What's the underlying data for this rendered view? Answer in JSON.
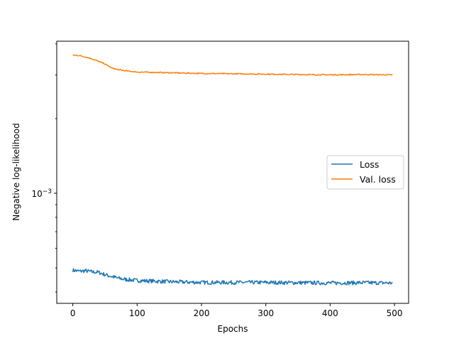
{
  "chart_data": {
    "type": "line",
    "xlabel": "Epochs",
    "ylabel": "Negative log-likelihood",
    "x_ticks": [
      0,
      100,
      200,
      300,
      400,
      500
    ],
    "xlim": [
      -25,
      522
    ],
    "y_scale": "log",
    "y_tick_label": {
      "base": "10",
      "exponent": "−3"
    },
    "y_major_tick": 0.001,
    "ylim": [
      0.00036,
      0.0041
    ],
    "grid": false,
    "legend": {
      "placement": "center-right"
    },
    "series": [
      {
        "name": "Loss",
        "color": "#1f77b4",
        "x": [
          0,
          10,
          20,
          30,
          40,
          50,
          60,
          70,
          80,
          100,
          150,
          200,
          250,
          300,
          350,
          400,
          450,
          497
        ],
        "values": [
          0.00049,
          0.000485,
          0.000487,
          0.000482,
          0.00048,
          0.00047,
          0.000462,
          0.000455,
          0.00045,
          0.000445,
          0.00044,
          0.000437,
          0.000437,
          0.000437,
          0.000436,
          0.000435,
          0.000436,
          0.000435
        ]
      },
      {
        "name": "Val. loss",
        "color": "#ff7f0e",
        "x": [
          0,
          10,
          20,
          30,
          40,
          50,
          60,
          70,
          80,
          100,
          150,
          200,
          250,
          300,
          350,
          400,
          450,
          497
        ],
        "values": [
          0.0036,
          0.00359,
          0.00354,
          0.00348,
          0.0034,
          0.00332,
          0.0032,
          0.00315,
          0.00312,
          0.00308,
          0.00306,
          0.00304,
          0.00303,
          0.00302,
          0.00301,
          0.003,
          0.00301,
          0.003
        ]
      }
    ]
  }
}
